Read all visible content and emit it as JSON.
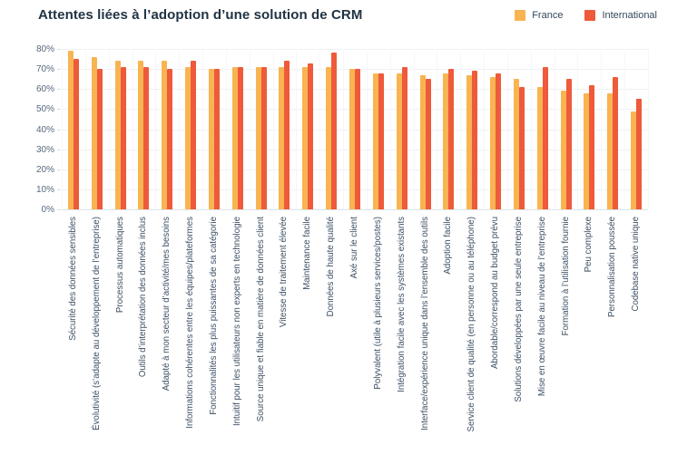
{
  "header": {
    "title": "Attentes liées à l’adoption d’une solution de CRM"
  },
  "colors": {
    "title_text": "#213343",
    "axis_text": "#56687d",
    "label_text": "#3e5266",
    "gridline": "#eef1f4",
    "background": "#ffffff",
    "france": "#F8B451",
    "international": "#EE5A3A"
  },
  "chart_data": {
    "type": "bar",
    "title": "Attentes liées à l’adoption d’une solution de CRM",
    "xlabel": "",
    "ylabel": "",
    "ylim": [
      0,
      80
    ],
    "ytick_labels": [
      "0%",
      "10%",
      "20%",
      "30%",
      "40%",
      "50%",
      "60%",
      "70%",
      "80%"
    ],
    "ytick_values": [
      0,
      10,
      20,
      30,
      40,
      50,
      60,
      70,
      80
    ],
    "grid": true,
    "legend_position": "top-right",
    "x_label_rotation_deg": 90,
    "categories": [
      "Sécurité des données sensibles",
      "Évolutivité (s’adapte au développement de l’entreprise)",
      "Processus automatiques",
      "Outils d’interprétation des données inclus",
      "Adapté à mon secteur d’activité/mes besoins",
      "Informations cohérentes entre les équipes/plateformes",
      "Fonctionnalités les plus puissantes de sa catégorie",
      "Intuitif pour les utilisateurs non experts en technologie",
      "Source unique et fiable en matière de données client",
      "Vitesse de traitement élevée",
      "Maintenance facile",
      "Données de haute qualité",
      "Axé sur le client",
      "Polyvalent (utile à plusieurs services/postes)",
      "Intégration facile avec les systèmes existants",
      "Interface/expérience unique dans l’ensemble des outils",
      "Adoption facile",
      "Service client de qualité (en personne ou au téléphone)",
      "Abordable/correspond au budget prévu",
      "Solutions développées par une seule entreprise",
      "Mise en œuvre facile au niveau de l’entreprise",
      "Formation à l’utilisation fournie",
      "Peu complexe",
      "Personnalisation poussée",
      "Codebase native unique"
    ],
    "series": [
      {
        "name": "France",
        "color": "#F8B451",
        "values": [
          79,
          76,
          74,
          74,
          74,
          71,
          70,
          71,
          71,
          71,
          71,
          71,
          70,
          68,
          68,
          67,
          68,
          67,
          66,
          65,
          61,
          59,
          58,
          58,
          49
        ]
      },
      {
        "name": "International",
        "color": "#EE5A3A",
        "values": [
          75,
          70,
          71,
          71,
          70,
          74,
          70,
          71,
          71,
          74,
          73,
          78,
          70,
          68,
          71,
          65,
          70,
          69,
          68,
          61,
          71,
          65,
          62,
          66,
          55
        ]
      }
    ]
  }
}
